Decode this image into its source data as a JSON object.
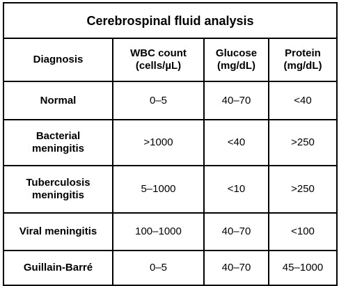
{
  "title": "Cerebrospinal fluid analysis",
  "headers": [
    {
      "line1": "Diagnosis",
      "line2": ""
    },
    {
      "line1": "WBC count",
      "line2": "(cells/µL)"
    },
    {
      "line1": "Glucose",
      "line2": "(mg/dL)"
    },
    {
      "line1": "Protein",
      "line2": "(mg/dL)"
    }
  ],
  "rows": [
    {
      "diagnosis_line1": "Normal",
      "diagnosis_line2": "",
      "wbc": "0–5",
      "glucose": "40–70",
      "protein": "<40"
    },
    {
      "diagnosis_line1": "Bacterial",
      "diagnosis_line2": "meningitis",
      "wbc": ">1000",
      "glucose": "<40",
      "protein": ">250"
    },
    {
      "diagnosis_line1": "Tuberculosis",
      "diagnosis_line2": "meningitis",
      "wbc": "5–1000",
      "glucose": "<10",
      "protein": ">250"
    },
    {
      "diagnosis_line1": "Viral meningitis",
      "diagnosis_line2": "",
      "wbc": "100–1000",
      "glucose": "40–70",
      "protein": "<100"
    },
    {
      "diagnosis_line1": "Guillain-Barré",
      "diagnosis_line2": "",
      "wbc": "0–5",
      "glucose": "40–70",
      "protein": "45–1000"
    }
  ]
}
